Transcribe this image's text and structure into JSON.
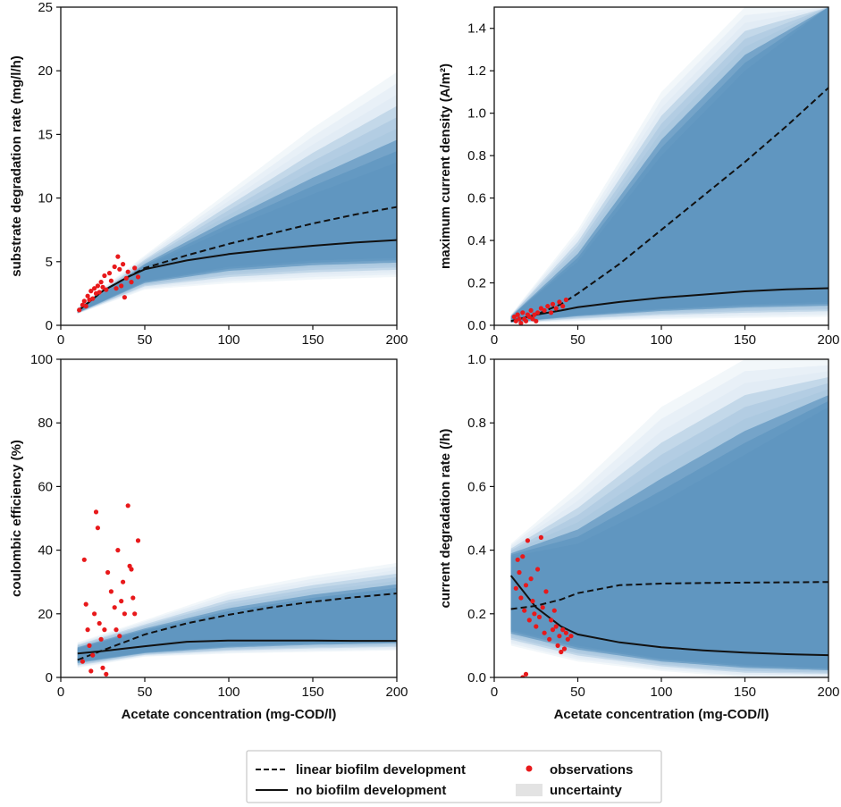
{
  "chart_data": [
    {
      "type": "line",
      "ylabel": "substrate degradation rate (mg/l/h)",
      "xlabel": "",
      "xlim": [
        0,
        200
      ],
      "ylim": [
        0,
        25
      ],
      "xticks": [
        "0",
        "50",
        "100",
        "150",
        "200"
      ],
      "yticks": [
        "0",
        "5",
        "10",
        "15",
        "20",
        "25"
      ],
      "x": [
        10,
        25,
        40,
        50,
        75,
        100,
        125,
        150,
        175,
        200
      ],
      "series": [
        {
          "name": "linear biofilm development",
          "style": "dashed",
          "values": [
            1.1,
            2.7,
            3.8,
            4.5,
            5.5,
            6.4,
            7.2,
            8.0,
            8.7,
            9.3
          ]
        },
        {
          "name": "no biofilm development",
          "style": "solid",
          "values": [
            1.1,
            2.7,
            3.8,
            4.4,
            5.1,
            5.6,
            5.95,
            6.25,
            6.5,
            6.7
          ]
        }
      ],
      "uncertainty": {
        "x": [
          10,
          50,
          100,
          150,
          200
        ],
        "lower": [
          0.9,
          2.8,
          3.3,
          3.6,
          3.8
        ],
        "upper": [
          1.4,
          5.5,
          10.5,
          15.5,
          19.9
        ],
        "core_lower": [
          1.0,
          3.5,
          4.6,
          5.1,
          5.3
        ],
        "core_upper": [
          1.2,
          4.6,
          7.6,
          10.3,
          12.8
        ]
      },
      "observations": [
        [
          11,
          1.2
        ],
        [
          13,
          1.6
        ],
        [
          14,
          1.9
        ],
        [
          15,
          1.5
        ],
        [
          16,
          2.3
        ],
        [
          17,
          2.0
        ],
        [
          18,
          2.7
        ],
        [
          19,
          2.1
        ],
        [
          20,
          2.9
        ],
        [
          21,
          2.5
        ],
        [
          22,
          3.1
        ],
        [
          23,
          2.6
        ],
        [
          24,
          3.4
        ],
        [
          25,
          3.0
        ],
        [
          26,
          3.9
        ],
        [
          27,
          2.8
        ],
        [
          29,
          4.1
        ],
        [
          30,
          3.5
        ],
        [
          32,
          4.6
        ],
        [
          33,
          2.9
        ],
        [
          34,
          5.4
        ],
        [
          35,
          4.4
        ],
        [
          36,
          3.1
        ],
        [
          37,
          4.8
        ],
        [
          38,
          2.2
        ],
        [
          39,
          3.7
        ],
        [
          40,
          4.2
        ],
        [
          42,
          3.4
        ],
        [
          44,
          4.5
        ],
        [
          46,
          3.8
        ]
      ]
    },
    {
      "type": "line",
      "ylabel": "maximum current density (A/m²)",
      "xlabel": "",
      "xlim": [
        0,
        200
      ],
      "ylim": [
        0,
        1.5
      ],
      "xticks": [
        "0",
        "50",
        "100",
        "150",
        "200"
      ],
      "yticks": [
        "0.0",
        "0.2",
        "0.4",
        "0.6",
        "0.8",
        "1.0",
        "1.2",
        "1.4"
      ],
      "x": [
        10,
        25,
        40,
        50,
        75,
        100,
        125,
        150,
        175,
        200
      ],
      "series": [
        {
          "name": "linear biofilm development",
          "style": "dashed",
          "values": [
            0.02,
            0.05,
            0.1,
            0.15,
            0.29,
            0.45,
            0.61,
            0.77,
            0.94,
            1.12
          ]
        },
        {
          "name": "no biofilm development",
          "style": "solid",
          "values": [
            0.02,
            0.05,
            0.07,
            0.085,
            0.11,
            0.13,
            0.145,
            0.16,
            0.17,
            0.175
          ]
        }
      ],
      "uncertainty": {
        "x": [
          10,
          50,
          100,
          150,
          200
        ],
        "lower": [
          0.01,
          0.02,
          0.03,
          0.035,
          0.04
        ],
        "upper": [
          0.05,
          0.45,
          1.1,
          1.5,
          1.5
        ],
        "core_lower": [
          0.015,
          0.05,
          0.08,
          0.1,
          0.11
        ],
        "core_upper": [
          0.04,
          0.3,
          0.8,
          1.2,
          1.5
        ]
      },
      "observations": [
        [
          12,
          0.04
        ],
        [
          13,
          0.02
        ],
        [
          14,
          0.05
        ],
        [
          15,
          0.03
        ],
        [
          16,
          0.01
        ],
        [
          17,
          0.06
        ],
        [
          18,
          0.03
        ],
        [
          19,
          0.02
        ],
        [
          20,
          0.05
        ],
        [
          21,
          0.04
        ],
        [
          22,
          0.07
        ],
        [
          23,
          0.03
        ],
        [
          24,
          0.05
        ],
        [
          25,
          0.02
        ],
        [
          26,
          0.06
        ],
        [
          28,
          0.08
        ],
        [
          30,
          0.07
        ],
        [
          32,
          0.09
        ],
        [
          34,
          0.06
        ],
        [
          35,
          0.1
        ],
        [
          37,
          0.08
        ],
        [
          39,
          0.11
        ],
        [
          41,
          0.09
        ],
        [
          43,
          0.12
        ]
      ]
    },
    {
      "type": "line",
      "ylabel": "coulombic efficiency (%)",
      "xlabel": "Acetate concentration (mg-COD/l)",
      "xlim": [
        0,
        200
      ],
      "ylim": [
        0,
        100
      ],
      "xticks": [
        "0",
        "50",
        "100",
        "150",
        "200"
      ],
      "yticks": [
        "0",
        "20",
        "40",
        "60",
        "80",
        "100"
      ],
      "x": [
        10,
        25,
        40,
        50,
        75,
        100,
        125,
        150,
        175,
        200
      ],
      "series": [
        {
          "name": "linear biofilm development",
          "style": "dashed",
          "values": [
            5.5,
            8.5,
            11.5,
            13.5,
            17.0,
            19.7,
            22.0,
            23.8,
            25.2,
            26.4
          ]
        },
        {
          "name": "no biofilm development",
          "style": "solid",
          "values": [
            7.5,
            8.3,
            9.2,
            9.8,
            11.2,
            11.6,
            11.6,
            11.6,
            11.5,
            11.5
          ]
        }
      ],
      "uncertainty": {
        "x": [
          10,
          50,
          100,
          150,
          200
        ],
        "lower": [
          3.0,
          6.5,
          7.5,
          8.0,
          8.5
        ],
        "upper": [
          11.0,
          18.0,
          27.0,
          32.0,
          36.0
        ],
        "core_lower": [
          5.0,
          8.0,
          10.0,
          11.0,
          11.5
        ],
        "core_upper": [
          9.0,
          14.5,
          20.0,
          24.0,
          27.0
        ]
      },
      "observations": [
        [
          13,
          5
        ],
        [
          14,
          37
        ],
        [
          15,
          23
        ],
        [
          16,
          15
        ],
        [
          17,
          10
        ],
        [
          18,
          2
        ],
        [
          19,
          7
        ],
        [
          20,
          20
        ],
        [
          21,
          52
        ],
        [
          22,
          47
        ],
        [
          23,
          17
        ],
        [
          24,
          12
        ],
        [
          25,
          3
        ],
        [
          26,
          15
        ],
        [
          27,
          1
        ],
        [
          28,
          33
        ],
        [
          30,
          27
        ],
        [
          32,
          22
        ],
        [
          33,
          15
        ],
        [
          34,
          40
        ],
        [
          35,
          13
        ],
        [
          36,
          24
        ],
        [
          37,
          30
        ],
        [
          38,
          20
        ],
        [
          40,
          54
        ],
        [
          41,
          35
        ],
        [
          42,
          34
        ],
        [
          43,
          25
        ],
        [
          44,
          20
        ],
        [
          46,
          43
        ]
      ]
    },
    {
      "type": "line",
      "ylabel": "current degradation rate (/h)",
      "xlabel": "Acetate concentration (mg-COD/l)",
      "xlim": [
        0,
        200
      ],
      "ylim": [
        0,
        1.0
      ],
      "xticks": [
        "0",
        "50",
        "100",
        "150",
        "200"
      ],
      "yticks": [
        "0.0",
        "0.2",
        "0.4",
        "0.6",
        "0.8",
        "1.0"
      ],
      "x": [
        10,
        25,
        40,
        50,
        75,
        100,
        125,
        150,
        175,
        200
      ],
      "series": [
        {
          "name": "linear biofilm development",
          "style": "dashed",
          "values": [
            0.215,
            0.225,
            0.245,
            0.265,
            0.29,
            0.295,
            0.297,
            0.298,
            0.299,
            0.3
          ]
        },
        {
          "name": "no biofilm development",
          "style": "solid",
          "values": [
            0.32,
            0.22,
            0.16,
            0.135,
            0.11,
            0.095,
            0.085,
            0.078,
            0.073,
            0.07
          ]
        }
      ],
      "uncertainty": {
        "x": [
          10,
          50,
          100,
          150,
          200
        ],
        "lower": [
          0.1,
          0.05,
          0.02,
          0.0,
          0.0
        ],
        "upper": [
          0.42,
          0.6,
          0.85,
          1.0,
          1.0
        ],
        "core_lower": [
          0.15,
          0.1,
          0.06,
          0.04,
          0.03
        ],
        "core_upper": [
          0.38,
          0.42,
          0.55,
          0.7,
          0.85
        ]
      },
      "observations": [
        [
          13,
          0.28
        ],
        [
          14,
          0.37
        ],
        [
          15,
          0.33
        ],
        [
          16,
          0.25
        ],
        [
          17,
          0.38
        ],
        [
          18,
          0.21
        ],
        [
          19,
          0.29
        ],
        [
          20,
          0.43
        ],
        [
          21,
          0.18
        ],
        [
          22,
          0.31
        ],
        [
          23,
          0.24
        ],
        [
          24,
          0.2
        ],
        [
          25,
          0.16
        ],
        [
          26,
          0.34
        ],
        [
          27,
          0.19
        ],
        [
          28,
          0.44
        ],
        [
          29,
          0.22
        ],
        [
          30,
          0.14
        ],
        [
          31,
          0.27
        ],
        [
          33,
          0.12
        ],
        [
          34,
          0.18
        ],
        [
          35,
          0.15
        ],
        [
          36,
          0.21
        ],
        [
          37,
          0.16
        ],
        [
          38,
          0.1
        ],
        [
          39,
          0.13
        ],
        [
          40,
          0.08
        ],
        [
          41,
          0.15
        ],
        [
          42,
          0.09
        ],
        [
          43,
          0.14
        ],
        [
          44,
          0.12
        ],
        [
          46,
          0.13
        ],
        [
          17,
          0.0
        ],
        [
          19,
          0.01
        ]
      ]
    }
  ],
  "legend": {
    "entries": [
      {
        "label": "linear biofilm development",
        "kind": "dashed-line"
      },
      {
        "label": "observations",
        "kind": "marker"
      },
      {
        "label": "no biofilm development",
        "kind": "solid-line"
      },
      {
        "label": "uncertainty",
        "kind": "patch"
      }
    ]
  },
  "colors": {
    "band_outer": "#dbe7f2",
    "band_mid": "#a9c6de",
    "band_core": "#5f95bf",
    "line": "#111111",
    "observation": "#e8191b",
    "legend_patch": "#e3e3e3"
  }
}
